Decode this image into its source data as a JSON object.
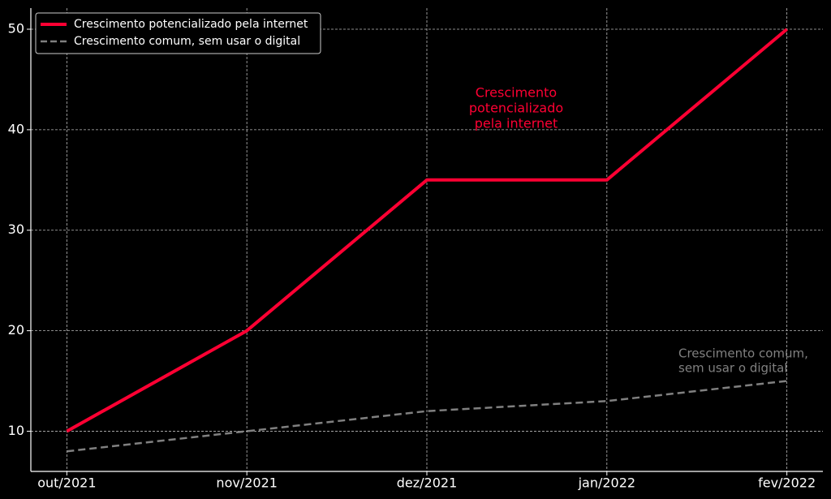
{
  "chart_data": {
    "type": "line",
    "categories": [
      "out/2021",
      "nov/2021",
      "dez/2021",
      "jan/2022",
      "fev/2022"
    ],
    "series": [
      {
        "name": "Crescimento potencializado pela internet",
        "color": "#ff0033",
        "dash": "solid",
        "values": [
          10,
          20,
          35,
          35,
          50
        ]
      },
      {
        "name": "Crescimento comum, sem usar o digital",
        "color": "#808080",
        "dash": "dashed",
        "values": [
          8,
          10,
          12,
          13,
          15
        ]
      }
    ],
    "ylim": [
      6,
      52.1
    ],
    "yticks": [
      10,
      20,
      30,
      40,
      50
    ],
    "grid": true,
    "legend": "upper left",
    "annotations": [
      {
        "lines": [
          "Crescimento",
          "potencializado",
          "pela internet"
        ],
        "color": "#ff0033"
      },
      {
        "lines": [
          "Crescimento comum,",
          "sem usar o digital"
        ],
        "color": "#808080"
      }
    ]
  }
}
